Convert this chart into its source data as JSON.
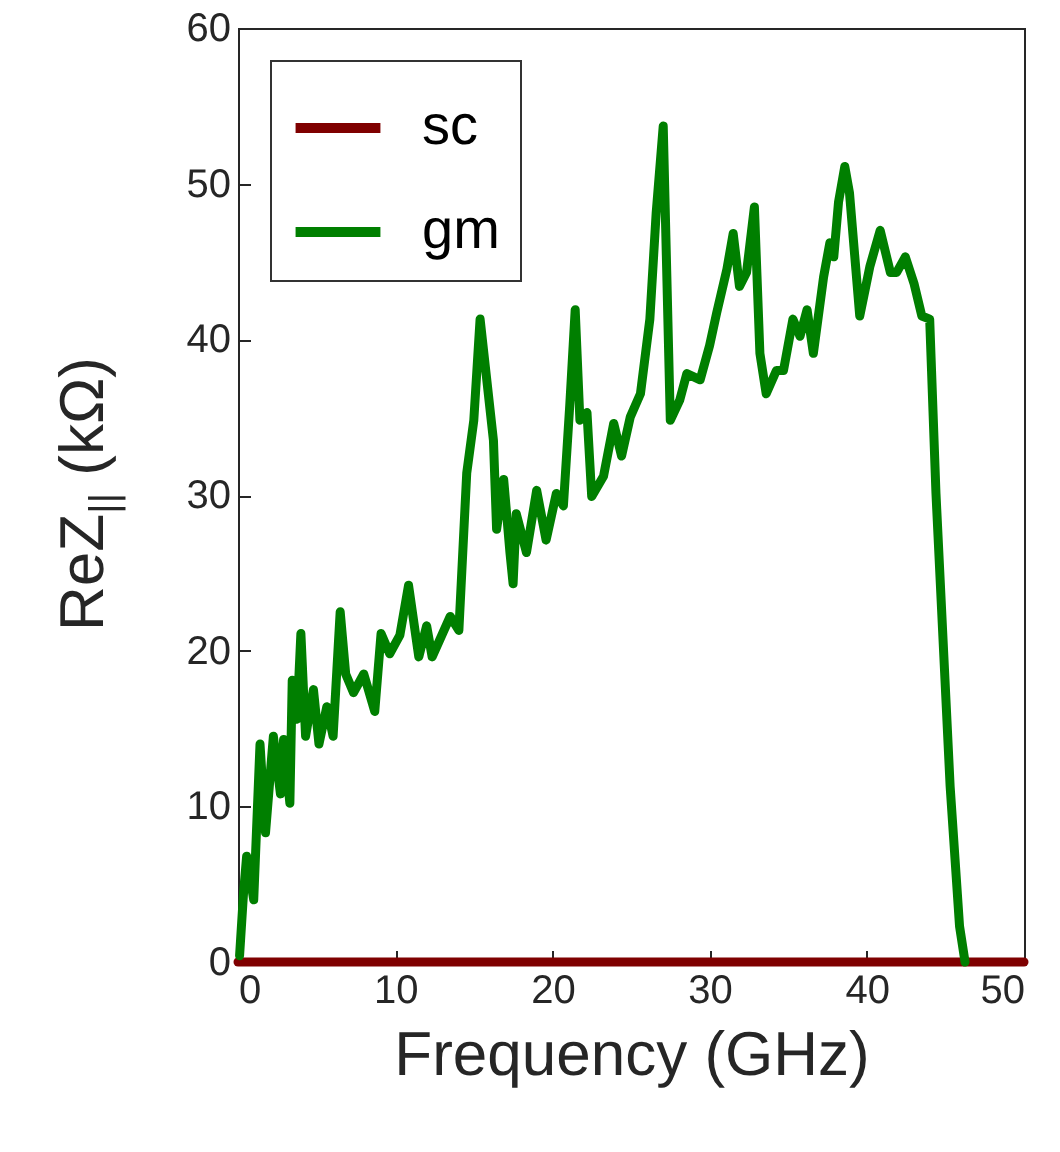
{
  "chart_data": {
    "type": "line",
    "xlabel": "Frequency (GHz)",
    "ylabel": "ReZ$_{||}$ (kΩ)",
    "xlim": [
      0,
      50
    ],
    "ylim": [
      0,
      60
    ],
    "xticks": [
      0,
      10,
      20,
      30,
      40,
      50
    ],
    "yticks": [
      0,
      10,
      20,
      30,
      40,
      50,
      60
    ],
    "legend": "top left",
    "grid": false,
    "line_style": "solid",
    "marker": "none",
    "series": [
      {
        "name": "sc",
        "color": "#7f0000",
        "x": [
          0,
          50
        ],
        "values": [
          0,
          0
        ]
      },
      {
        "name": "gm",
        "color": "#007f00",
        "x": [
          0.1,
          0.35,
          0.55,
          1.0,
          1.4,
          1.75,
          2.25,
          2.7,
          2.9,
          3.3,
          3.45,
          3.75,
          4.0,
          4.3,
          4.8,
          5.15,
          5.65,
          6.05,
          6.5,
          6.85,
          7.35,
          8.0,
          8.7,
          9.1,
          9.65,
          10.3,
          10.85,
          11.5,
          12.0,
          12.35,
          13.5,
          14.05,
          14.55,
          15.0,
          15.4,
          16.25,
          16.45,
          16.9,
          17.3,
          17.5,
          17.7,
          18.35,
          19.0,
          19.6,
          20.25,
          20.7,
          21.1,
          21.45,
          21.75,
          22.2,
          22.5,
          23.25,
          23.9,
          24.4,
          24.95,
          25.6,
          26.2,
          26.6,
          27.05,
          27.5,
          28.1,
          28.55,
          29.4,
          30.0,
          30.45,
          31.1,
          31.5,
          31.9,
          32.35,
          32.85,
          33.2,
          33.6,
          34.25,
          34.7,
          35.3,
          35.75,
          36.2,
          36.6,
          37.25,
          37.65,
          37.9,
          38.2,
          38.6,
          38.9,
          39.55,
          40.2,
          40.85,
          41.5,
          41.9,
          42.45,
          43.0,
          43.5,
          44.0,
          44.4,
          45.3,
          45.9,
          46.25
        ],
        "values": [
          0.4,
          4.4,
          6.8,
          4.0,
          14.0,
          8.3,
          14.5,
          10.8,
          14.3,
          10.2,
          18.1,
          15.6,
          21.1,
          14.5,
          17.5,
          14.0,
          16.4,
          14.5,
          22.5,
          18.5,
          17.3,
          18.5,
          16.1,
          21.1,
          19.8,
          21.0,
          24.2,
          19.6,
          21.6,
          19.6,
          22.2,
          21.3,
          31.4,
          34.8,
          41.3,
          33.5,
          27.8,
          31.0,
          26.3,
          24.3,
          28.8,
          26.3,
          30.3,
          27.1,
          30.1,
          29.3,
          35.7,
          41.9,
          34.8,
          35.3,
          29.9,
          31.2,
          34.6,
          32.5,
          35.0,
          36.5,
          41.3,
          48.1,
          53.7,
          34.8,
          36.1,
          37.8,
          37.4,
          39.6,
          41.7,
          44.5,
          46.8,
          43.4,
          44.3,
          48.5,
          39.1,
          36.5,
          38.0,
          38.0,
          41.3,
          40.2,
          41.9,
          39.1,
          44.0,
          46.2,
          45.3,
          48.8,
          51.1,
          49.4,
          41.5,
          44.7,
          47.0,
          44.3,
          44.3,
          45.3,
          43.6,
          41.5,
          41.3,
          30.1,
          11.3,
          2.3,
          0.0
        ]
      }
    ]
  }
}
